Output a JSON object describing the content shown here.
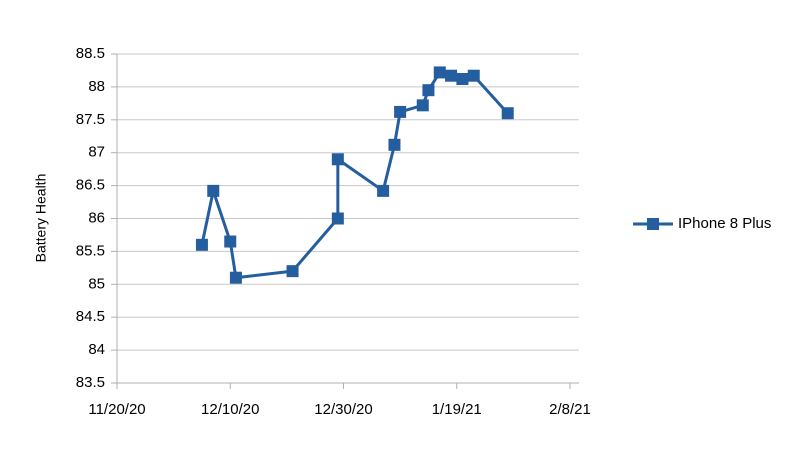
{
  "chart_data": {
    "type": "line",
    "y_label": "Battery  Health",
    "x": [
      "12/5/20",
      "12/7/20",
      "12/10/20",
      "12/11/20",
      "12/21/20",
      "12/29/20",
      "12/29/20",
      "1/6/21",
      "1/8/21",
      "1/9/21",
      "1/13/21",
      "1/14/21",
      "1/16/21",
      "1/18/21",
      "1/20/21",
      "1/22/21",
      "1/28/21"
    ],
    "series": [
      {
        "name": "IPhone 8 Plus",
        "color": "#255e9f",
        "values": [
          85.6,
          86.42,
          85.65,
          85.1,
          85.2,
          86.0,
          86.9,
          86.42,
          87.12,
          87.62,
          87.72,
          87.95,
          88.22,
          88.17,
          88.12,
          88.17,
          87.6
        ]
      }
    ],
    "xlim": [
      "11/20/20",
      "2/8/21"
    ],
    "xticks": [
      "11/20/20",
      "12/10/20",
      "12/30/20",
      "1/19/21",
      "2/8/21"
    ],
    "ylim": [
      83.5,
      88.5
    ],
    "yticks": [
      83.5,
      84,
      84.5,
      85,
      85.5,
      86,
      86.5,
      87,
      87.5,
      88,
      88.5
    ],
    "grid": true,
    "legend": "right"
  }
}
